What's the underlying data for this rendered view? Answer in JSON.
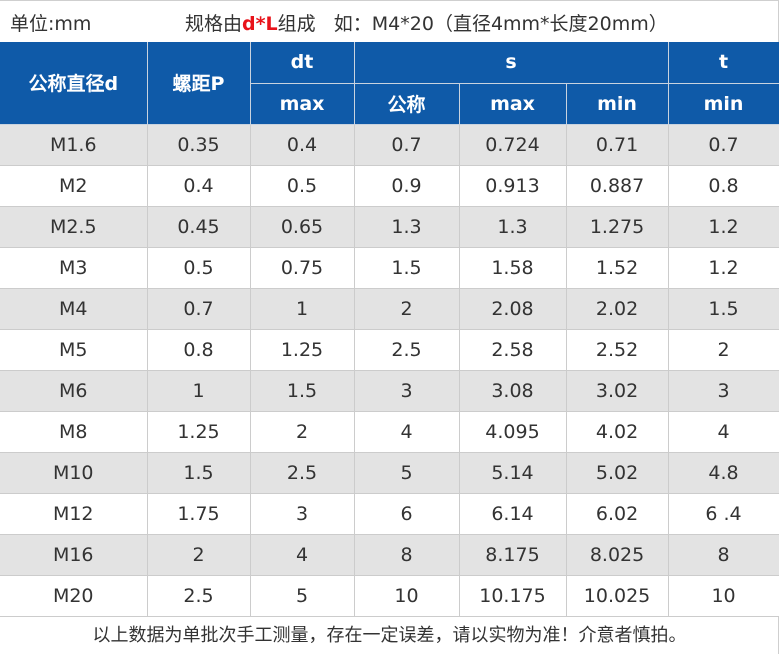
{
  "header_line": {
    "unit": "单位:mm",
    "spec_prefix": "规格由",
    "spec_highlight": "d*L",
    "spec_suffix": "组成   如：M4*20（直径4mm*长度20mm）",
    "highlight_color": "#e8131a"
  },
  "table": {
    "header_color": "#0f5aa8",
    "group_headers": {
      "col_d": "公称直径d",
      "col_p": "螺距P",
      "dt": "dt",
      "s": "s",
      "t": "t"
    },
    "sub_headers": {
      "dt_max": "max",
      "s_nominal": "公称",
      "s_max": "max",
      "s_min": "min",
      "t_min": "min"
    },
    "rows": [
      [
        "M1.6",
        "0.35",
        "0.4",
        "0.7",
        "0.724",
        "0.71",
        "0.7"
      ],
      [
        "M2",
        "0.4",
        "0.5",
        "0.9",
        "0.913",
        "0.887",
        "0.8"
      ],
      [
        "M2.5",
        "0.45",
        "0.65",
        "1.3",
        "1.3",
        "1.275",
        "1.2"
      ],
      [
        "M3",
        "0.5",
        "0.75",
        "1.5",
        "1.58",
        "1.52",
        "1.2"
      ],
      [
        "M4",
        "0.7",
        "1",
        "2",
        "2.08",
        "2.02",
        "1.5"
      ],
      [
        "M5",
        "0.8",
        "1.25",
        "2.5",
        "2.58",
        "2.52",
        "2"
      ],
      [
        "M6",
        "1",
        "1.5",
        "3",
        "3.08",
        "3.02",
        "3"
      ],
      [
        "M8",
        "1.25",
        "2",
        "4",
        "4.095",
        "4.02",
        "4"
      ],
      [
        "M10",
        "1.5",
        "2.5",
        "5",
        "5.14",
        "5.02",
        "4.8"
      ],
      [
        "M12",
        "1.75",
        "3",
        "6",
        "6.14",
        "6.02",
        "6 .4"
      ],
      [
        "M16",
        "2",
        "4",
        "8",
        "8.175",
        "8.025",
        "8"
      ],
      [
        "M20",
        "2.5",
        "5",
        "10",
        "10.175",
        "10.025",
        "10"
      ]
    ]
  },
  "footer": {
    "note": "以上数据为单批次手工测量，存在一定误差，请以实物为准！介意者慎拍。"
  }
}
